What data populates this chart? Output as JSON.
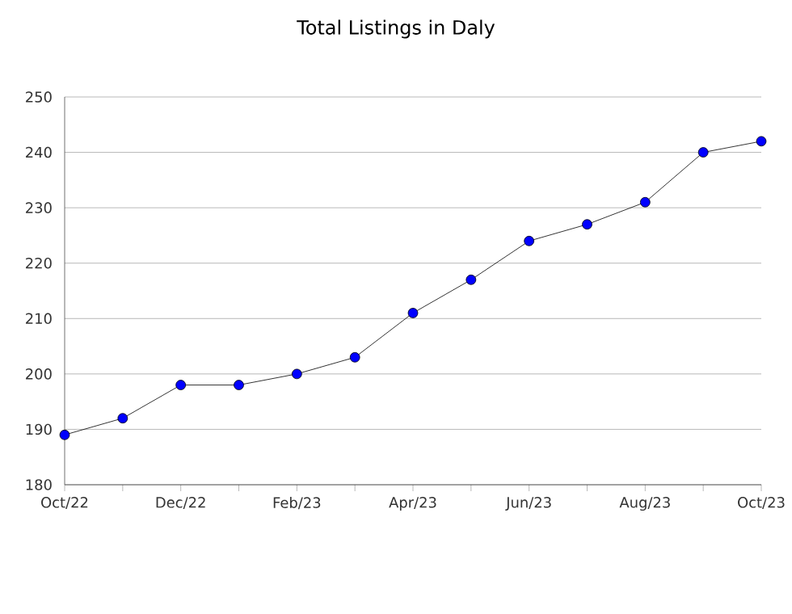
{
  "chart_data": {
    "type": "line",
    "title": "Total Listings in Daly",
    "categories": [
      "Oct/22",
      null,
      "Dec/22",
      null,
      "Feb/23",
      null,
      "Apr/23",
      null,
      "Jun/23",
      null,
      "Aug/23",
      null,
      "Oct/23"
    ],
    "series": [
      {
        "color": "#0000ff",
        "values": [
          189,
          192,
          198,
          198,
          200,
          203,
          211,
          217,
          224,
          227,
          231,
          240,
          242
        ]
      }
    ],
    "ylim": [
      180,
      250
    ],
    "yticks": [
      180,
      190,
      200,
      210,
      220,
      230,
      240,
      250
    ],
    "grid": "y",
    "marker": "circle",
    "line_style": "solid"
  }
}
